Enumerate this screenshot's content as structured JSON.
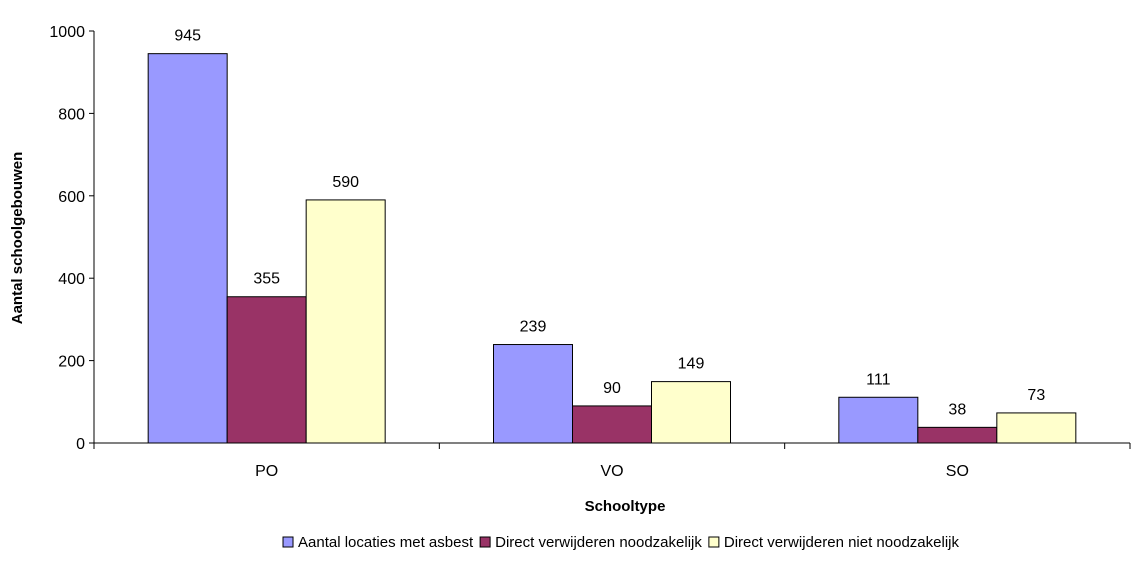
{
  "chart_data": {
    "type": "bar",
    "title": "",
    "xlabel": "Schooltype",
    "ylabel": "Aantal schoolgebouwen",
    "categories": [
      "PO",
      "VO",
      "SO"
    ],
    "ylim": [
      0,
      1000
    ],
    "yticks": [
      0,
      200,
      400,
      600,
      800,
      1000
    ],
    "grid": false,
    "legend_position": "bottom",
    "series": [
      {
        "name": "Aantal locaties met asbest",
        "values": [
          945,
          239,
          111
        ],
        "color": "#9999ff"
      },
      {
        "name": "Direct verwijderen noodzakelijk",
        "values": [
          355,
          90,
          38
        ],
        "color": "#993366"
      },
      {
        "name": "Direct verwijderen niet noodzakelijk",
        "values": [
          590,
          149,
          73
        ],
        "color": "#ffffcc"
      }
    ]
  }
}
